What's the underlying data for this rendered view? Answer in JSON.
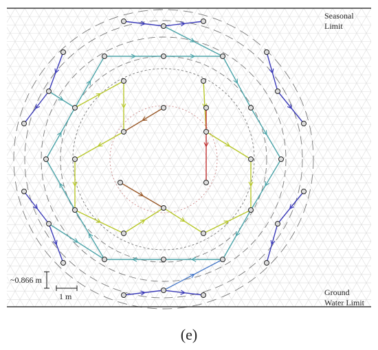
{
  "labels": {
    "top_limit": [
      "Seasonal",
      "Limit"
    ],
    "bottom_limit": [
      "Ground",
      "Water Limit"
    ],
    "scale_vertical": "~0.866 m",
    "scale_horizontal": "1 m",
    "panel": "(e)"
  }
}
